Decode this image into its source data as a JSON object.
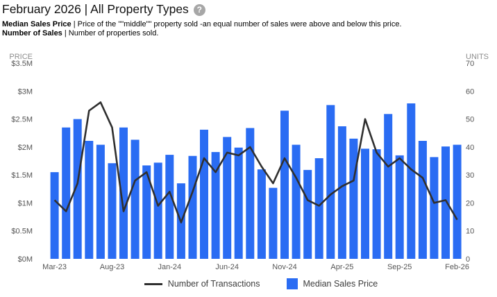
{
  "header": {
    "title": "February 2026 | All Property Types",
    "help_icon_glyph": "?"
  },
  "definitions": [
    {
      "term": "Median Sales Price",
      "sep": "|",
      "desc": "Price of the \"\"middle\"\" property sold -an equal number of sales were above and below this price."
    },
    {
      "term": "Number of Sales",
      "sep": "|",
      "desc": "Number of properties sold."
    }
  ],
  "chart_data": {
    "type": "bar+line combo",
    "title": "February 2026 | All Property Types",
    "grid": "none",
    "background": "#ffffff",
    "months": [
      "Mar-23",
      "Apr-23",
      "May-23",
      "Jun-23",
      "Jul-23",
      "Aug-23",
      "Sep-23",
      "Oct-23",
      "Nov-23",
      "Dec-23",
      "Jan-24",
      "Feb-24",
      "Mar-24",
      "Apr-24",
      "May-24",
      "Jun-24",
      "Jul-24",
      "Aug-24",
      "Sep-24",
      "Oct-24",
      "Nov-24",
      "Dec-24",
      "Jan-25",
      "Feb-25",
      "Mar-25",
      "Apr-25",
      "May-25",
      "Jun-25",
      "Jul-25",
      "Aug-25",
      "Sep-25",
      "Oct-25",
      "Nov-25",
      "Dec-25",
      "Jan-26",
      "Feb-26"
    ],
    "x_tick_labels": [
      "Mar-23",
      "Aug-23",
      "Jan-24",
      "Jun-24",
      "Nov-24",
      "Apr-25",
      "Sep-25",
      "Feb-26"
    ],
    "left_axis": {
      "title": "PRICE",
      "ticks": [
        "$0M",
        "$0.5M",
        "$1M",
        "$1.5M",
        "$2M",
        "$2.5M",
        "$3M",
        "$3.5M"
      ],
      "min": 0,
      "max_musd": 3.5
    },
    "right_axis": {
      "title": "UNITS",
      "ticks": [
        "0",
        "10",
        "20",
        "30",
        "40",
        "50",
        "60",
        "70"
      ],
      "min": 0,
      "max": 70
    },
    "series": [
      {
        "name": "Median Sales Price",
        "type": "bar",
        "axis": "left",
        "color": "#2a6cf3",
        "values_musd": [
          1.55,
          2.35,
          2.5,
          2.11,
          2.04,
          1.71,
          2.35,
          2.13,
          1.67,
          1.72,
          1.86,
          1.35,
          1.84,
          2.31,
          1.91,
          2.18,
          1.99,
          2.34,
          1.6,
          1.27,
          2.65,
          2.04,
          1.59,
          1.8,
          2.75,
          2.37,
          2.15,
          1.97,
          1.96,
          2.59,
          1.85,
          2.78,
          2.11,
          1.82,
          2.01,
          2.04
        ]
      },
      {
        "name": "Number of Transactions",
        "type": "line",
        "axis": "right",
        "color": "#2f2f2f",
        "values_units": [
          21,
          17,
          27,
          53,
          56,
          47,
          17,
          28,
          31,
          19,
          24,
          13,
          24,
          36,
          31,
          38,
          37,
          40,
          33,
          27,
          36,
          29,
          21,
          19,
          23,
          26,
          28,
          50,
          38,
          33,
          36,
          32,
          29,
          20,
          21,
          14
        ]
      }
    ],
    "legend": [
      "Number of Transactions",
      "Median Sales Price"
    ],
    "legend_position": "bottom"
  }
}
